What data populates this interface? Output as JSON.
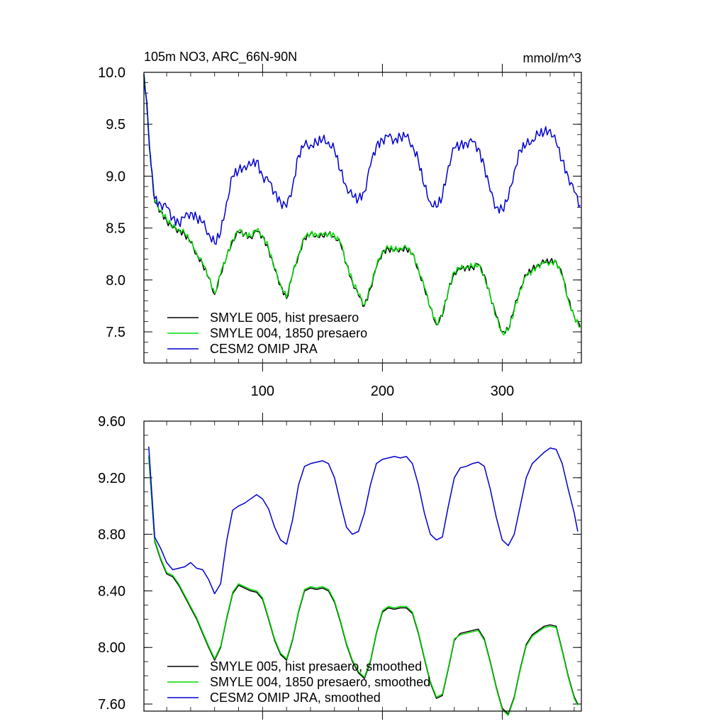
{
  "chart_data": [
    {
      "type": "line",
      "title": "105m NO3, ARC_66N-90N",
      "units": "mmol/m^3",
      "xlim": [
        1,
        366
      ],
      "ylim": [
        7.2,
        10.0
      ],
      "x_ticks": [
        100,
        200,
        300
      ],
      "y_ticks": [
        "7.5",
        "8.0",
        "8.5",
        "9.0",
        "9.5",
        "10.0"
      ],
      "series": [
        {
          "name": "SMYLE 005, hist presaero",
          "color": "#000000",
          "x": [
            1,
            3,
            5,
            7,
            10,
            15,
            20,
            25,
            30,
            35,
            40,
            45,
            50,
            55,
            60,
            65,
            70,
            75,
            80,
            85,
            90,
            95,
            100,
            105,
            110,
            115,
            120,
            125,
            130,
            135,
            140,
            145,
            150,
            155,
            160,
            165,
            170,
            175,
            180,
            185,
            190,
            195,
            200,
            205,
            210,
            215,
            220,
            225,
            230,
            235,
            240,
            245,
            250,
            255,
            260,
            265,
            270,
            275,
            280,
            285,
            290,
            295,
            300,
            305,
            310,
            315,
            320,
            325,
            330,
            335,
            340,
            345,
            350,
            355,
            360,
            365
          ],
          "values": [
            9.98,
            9.75,
            9.4,
            9.1,
            8.75,
            8.66,
            8.57,
            8.5,
            8.48,
            8.44,
            8.36,
            8.25,
            8.15,
            8.02,
            7.86,
            8.05,
            8.22,
            8.38,
            8.46,
            8.44,
            8.41,
            8.47,
            8.42,
            8.3,
            8.1,
            7.95,
            7.82,
            8.05,
            8.24,
            8.4,
            8.44,
            8.43,
            8.42,
            8.44,
            8.42,
            8.35,
            8.15,
            7.98,
            7.85,
            7.75,
            7.92,
            8.12,
            8.27,
            8.3,
            8.28,
            8.3,
            8.3,
            8.25,
            8.1,
            7.92,
            7.73,
            7.57,
            7.65,
            7.9,
            8.07,
            8.1,
            8.12,
            8.12,
            8.15,
            8.05,
            7.85,
            7.65,
            7.5,
            7.52,
            7.72,
            7.92,
            8.05,
            8.1,
            8.15,
            8.17,
            8.18,
            8.18,
            8.05,
            7.82,
            7.65,
            7.55
          ]
        },
        {
          "name": "SMYLE 004, 1850 presaero",
          "color": "#00dd00",
          "x": [
            1,
            3,
            5,
            7,
            10,
            15,
            20,
            25,
            30,
            35,
            40,
            45,
            50,
            55,
            60,
            65,
            70,
            75,
            80,
            85,
            90,
            95,
            100,
            105,
            110,
            115,
            120,
            125,
            130,
            135,
            140,
            145,
            150,
            155,
            160,
            165,
            170,
            175,
            180,
            185,
            190,
            195,
            200,
            205,
            210,
            215,
            220,
            225,
            230,
            235,
            240,
            245,
            250,
            255,
            260,
            265,
            270,
            275,
            280,
            285,
            290,
            295,
            300,
            305,
            310,
            315,
            320,
            325,
            330,
            335,
            340,
            345,
            350,
            355,
            360,
            365
          ],
          "values": [
            9.98,
            9.75,
            9.4,
            9.1,
            8.76,
            8.67,
            8.58,
            8.51,
            8.49,
            8.45,
            8.37,
            8.26,
            8.16,
            8.03,
            7.87,
            8.06,
            8.23,
            8.39,
            8.47,
            8.45,
            8.42,
            8.48,
            8.43,
            8.31,
            8.11,
            7.96,
            7.83,
            8.06,
            8.25,
            8.41,
            8.45,
            8.44,
            8.43,
            8.45,
            8.43,
            8.36,
            8.16,
            7.99,
            7.86,
            7.76,
            7.93,
            8.13,
            8.28,
            8.31,
            8.29,
            8.31,
            8.31,
            8.26,
            8.11,
            7.93,
            7.74,
            7.58,
            7.66,
            7.91,
            8.08,
            8.11,
            8.13,
            8.13,
            8.14,
            8.04,
            7.84,
            7.64,
            7.49,
            7.51,
            7.71,
            7.91,
            8.04,
            8.09,
            8.14,
            8.16,
            8.17,
            8.17,
            8.04,
            7.81,
            7.64,
            7.54
          ]
        },
        {
          "name": "CESM2 OMIP JRA",
          "color": "#0000cc",
          "x": [
            1,
            3,
            5,
            7,
            10,
            15,
            20,
            25,
            30,
            35,
            40,
            45,
            50,
            55,
            60,
            65,
            70,
            75,
            80,
            85,
            90,
            95,
            100,
            105,
            110,
            115,
            120,
            125,
            130,
            135,
            140,
            145,
            150,
            155,
            160,
            165,
            170,
            175,
            180,
            185,
            190,
            195,
            200,
            205,
            210,
            215,
            220,
            225,
            230,
            235,
            240,
            245,
            250,
            255,
            260,
            265,
            270,
            275,
            280,
            285,
            290,
            295,
            300,
            305,
            310,
            315,
            320,
            325,
            330,
            335,
            340,
            345,
            350,
            355,
            360,
            365
          ],
          "values": [
            9.98,
            9.75,
            9.4,
            9.1,
            8.78,
            8.73,
            8.7,
            8.6,
            8.55,
            8.6,
            8.65,
            8.6,
            8.55,
            8.45,
            8.35,
            8.45,
            8.75,
            9.0,
            9.05,
            9.1,
            9.1,
            9.15,
            9.0,
            8.95,
            8.85,
            8.75,
            8.7,
            8.9,
            9.2,
            9.3,
            9.3,
            9.32,
            9.35,
            9.33,
            9.25,
            9.05,
            8.9,
            8.8,
            8.78,
            8.85,
            9.1,
            9.3,
            9.35,
            9.38,
            9.35,
            9.38,
            9.38,
            9.3,
            9.15,
            8.9,
            8.75,
            8.7,
            8.8,
            9.1,
            9.27,
            9.3,
            9.32,
            9.33,
            9.27,
            9.1,
            8.85,
            8.7,
            8.68,
            8.78,
            9.05,
            9.25,
            9.3,
            9.35,
            9.4,
            9.42,
            9.45,
            9.32,
            9.15,
            9.0,
            8.85,
            8.72
          ]
        }
      ]
    },
    {
      "type": "line",
      "xlim": [
        1,
        366
      ],
      "ylim": [
        7.55,
        9.6
      ],
      "x_ticks": [
        100,
        200,
        300
      ],
      "y_ticks": [
        "7.60",
        "8.00",
        "8.40",
        "8.80",
        "9.20",
        "9.60"
      ],
      "series": [
        {
          "name": "SMYLE 005, hist presaero, smoothed",
          "color": "#000000",
          "x": [
            5,
            10,
            15,
            20,
            25,
            30,
            35,
            40,
            45,
            50,
            55,
            60,
            65,
            70,
            75,
            80,
            85,
            90,
            95,
            100,
            105,
            110,
            115,
            120,
            125,
            130,
            135,
            140,
            145,
            150,
            155,
            160,
            165,
            170,
            175,
            180,
            185,
            190,
            195,
            200,
            205,
            210,
            215,
            220,
            225,
            230,
            235,
            240,
            245,
            250,
            255,
            260,
            265,
            270,
            275,
            280,
            285,
            290,
            295,
            300,
            305,
            310,
            315,
            320,
            325,
            330,
            335,
            340,
            345,
            350,
            355,
            360,
            363
          ],
          "values": [
            9.35,
            8.75,
            8.62,
            8.52,
            8.5,
            8.44,
            8.36,
            8.28,
            8.2,
            8.1,
            8.0,
            7.91,
            8.0,
            8.2,
            8.38,
            8.44,
            8.42,
            8.4,
            8.39,
            8.34,
            8.2,
            8.05,
            7.95,
            7.91,
            8.05,
            8.25,
            8.4,
            8.42,
            8.41,
            8.42,
            8.4,
            8.32,
            8.18,
            8.02,
            7.9,
            7.82,
            7.78,
            7.9,
            8.1,
            8.25,
            8.28,
            8.27,
            8.28,
            8.28,
            8.24,
            8.1,
            7.92,
            7.75,
            7.64,
            7.66,
            7.85,
            8.05,
            8.1,
            8.11,
            8.12,
            8.13,
            8.06,
            7.9,
            7.72,
            7.57,
            7.53,
            7.65,
            7.85,
            8.02,
            8.09,
            8.12,
            8.15,
            8.16,
            8.15,
            7.98,
            7.8,
            7.65,
            7.6
          ]
        },
        {
          "name": "SMYLE 004, 1850 presaero, smoothed",
          "color": "#00dd00",
          "x": [
            5,
            10,
            15,
            20,
            25,
            30,
            35,
            40,
            45,
            50,
            55,
            60,
            65,
            70,
            75,
            80,
            85,
            90,
            95,
            100,
            105,
            110,
            115,
            120,
            125,
            130,
            135,
            140,
            145,
            150,
            155,
            160,
            165,
            170,
            175,
            180,
            185,
            190,
            195,
            200,
            205,
            210,
            215,
            220,
            225,
            230,
            235,
            240,
            245,
            250,
            255,
            260,
            265,
            270,
            275,
            280,
            285,
            290,
            295,
            300,
            305,
            310,
            315,
            320,
            325,
            330,
            335,
            340,
            345,
            350,
            355,
            360,
            363
          ],
          "values": [
            9.36,
            8.76,
            8.63,
            8.53,
            8.51,
            8.45,
            8.37,
            8.29,
            8.21,
            8.11,
            8.01,
            7.92,
            8.01,
            8.21,
            8.39,
            8.45,
            8.43,
            8.41,
            8.4,
            8.35,
            8.21,
            8.06,
            7.96,
            7.92,
            8.06,
            8.26,
            8.41,
            8.43,
            8.42,
            8.43,
            8.41,
            8.33,
            8.19,
            8.03,
            7.91,
            7.83,
            7.79,
            7.91,
            8.11,
            8.26,
            8.29,
            8.28,
            8.29,
            8.29,
            8.25,
            8.11,
            7.93,
            7.76,
            7.65,
            7.67,
            7.86,
            8.06,
            8.09,
            8.1,
            8.11,
            8.12,
            8.05,
            7.89,
            7.71,
            7.56,
            7.52,
            7.64,
            7.84,
            8.01,
            8.08,
            8.11,
            8.14,
            8.15,
            8.14,
            7.97,
            7.79,
            7.64,
            7.59
          ]
        },
        {
          "name": "CESM2 OMIP JRA, smoothed",
          "color": "#0000cc",
          "x": [
            5,
            10,
            15,
            20,
            25,
            30,
            35,
            40,
            45,
            50,
            55,
            60,
            65,
            70,
            75,
            80,
            85,
            90,
            95,
            100,
            105,
            110,
            115,
            120,
            125,
            130,
            135,
            140,
            145,
            150,
            155,
            160,
            165,
            170,
            175,
            180,
            185,
            190,
            195,
            200,
            205,
            210,
            215,
            220,
            225,
            230,
            235,
            240,
            245,
            250,
            255,
            260,
            265,
            270,
            275,
            280,
            285,
            290,
            295,
            300,
            305,
            310,
            315,
            320,
            325,
            330,
            335,
            340,
            345,
            350,
            355,
            360,
            363
          ],
          "values": [
            9.42,
            8.78,
            8.7,
            8.6,
            8.55,
            8.56,
            8.57,
            8.6,
            8.56,
            8.55,
            8.48,
            8.38,
            8.45,
            8.75,
            8.97,
            9.0,
            9.02,
            9.05,
            9.08,
            9.05,
            8.98,
            8.85,
            8.76,
            8.73,
            8.9,
            9.15,
            9.28,
            9.3,
            9.31,
            9.32,
            9.3,
            9.2,
            9.02,
            8.85,
            8.8,
            8.82,
            8.95,
            9.15,
            9.3,
            9.33,
            9.34,
            9.35,
            9.34,
            9.35,
            9.3,
            9.15,
            8.95,
            8.8,
            8.76,
            8.78,
            9.0,
            9.2,
            9.27,
            9.28,
            9.3,
            9.31,
            9.28,
            9.12,
            8.92,
            8.76,
            8.72,
            8.8,
            9.0,
            9.2,
            9.3,
            9.34,
            9.38,
            9.41,
            9.4,
            9.3,
            9.12,
            8.95,
            8.82
          ]
        }
      ]
    }
  ]
}
